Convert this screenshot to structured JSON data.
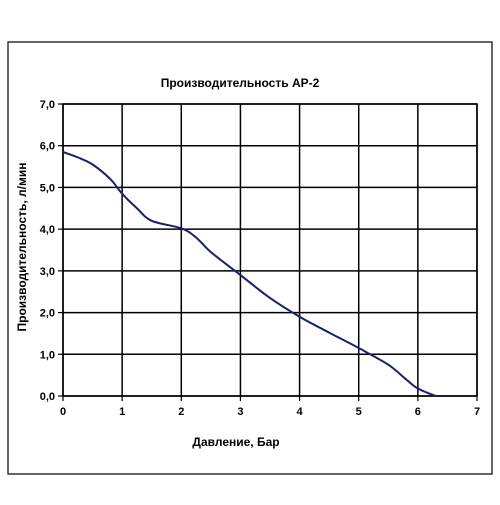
{
  "chart_data": {
    "type": "line",
    "title": "Производительность AP-2",
    "xlabel": "Давление, Бар",
    "ylabel": "Производительность, л/мин",
    "xlim": [
      0,
      7
    ],
    "ylim": [
      0,
      7
    ],
    "x_ticks": [
      "0",
      "1",
      "2",
      "3",
      "4",
      "5",
      "6",
      "7"
    ],
    "y_ticks": [
      "0,0",
      "1,0",
      "2,0",
      "3,0",
      "4,0",
      "5,0",
      "6,0",
      "7,0"
    ],
    "grid": true,
    "legend": "none",
    "series": [
      {
        "color": "#1a1f6e",
        "x": [
          0,
          0.25,
          0.5,
          0.8,
          1.0,
          1.25,
          1.5,
          2.0,
          2.25,
          2.5,
          3.0,
          3.5,
          4.0,
          4.5,
          5.0,
          5.5,
          5.8,
          6.0,
          6.3
        ],
        "y": [
          5.85,
          5.72,
          5.55,
          5.2,
          4.85,
          4.5,
          4.2,
          4.02,
          3.8,
          3.45,
          2.9,
          2.35,
          1.9,
          1.52,
          1.15,
          0.75,
          0.4,
          0.18,
          0.0
        ]
      }
    ]
  }
}
